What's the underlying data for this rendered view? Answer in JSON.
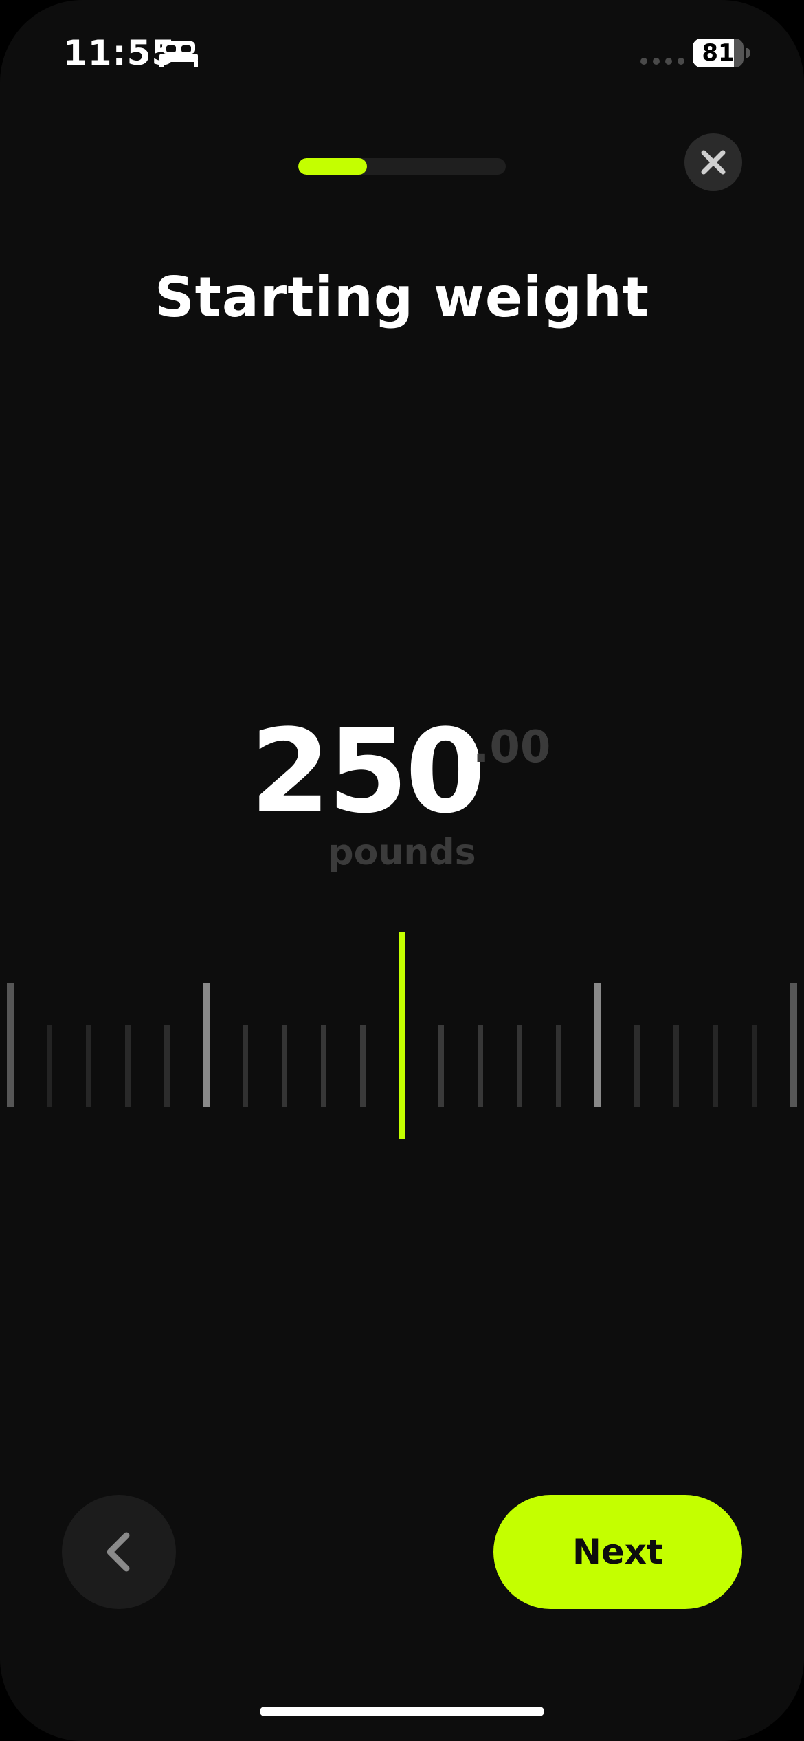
{
  "status_bar": {
    "time": "11:55",
    "sleep_icon": "bed-icon",
    "battery_percent": 81,
    "battery_label": "81"
  },
  "header": {
    "progress_fraction": 0.33,
    "close_icon": "close-icon"
  },
  "title": "Starting weight",
  "weight": {
    "whole": "250",
    "decimal": ".00",
    "unit": "pounds"
  },
  "ruler": {
    "selected_value": 250,
    "step": 1,
    "major_every": 5,
    "visible_range": [
      240,
      260
    ],
    "indicator_color": "#c4ff00"
  },
  "footer": {
    "back_icon": "chevron-left-icon",
    "next_label": "Next"
  },
  "colors": {
    "accent": "#c4ff00",
    "background": "#0d0d0d"
  }
}
